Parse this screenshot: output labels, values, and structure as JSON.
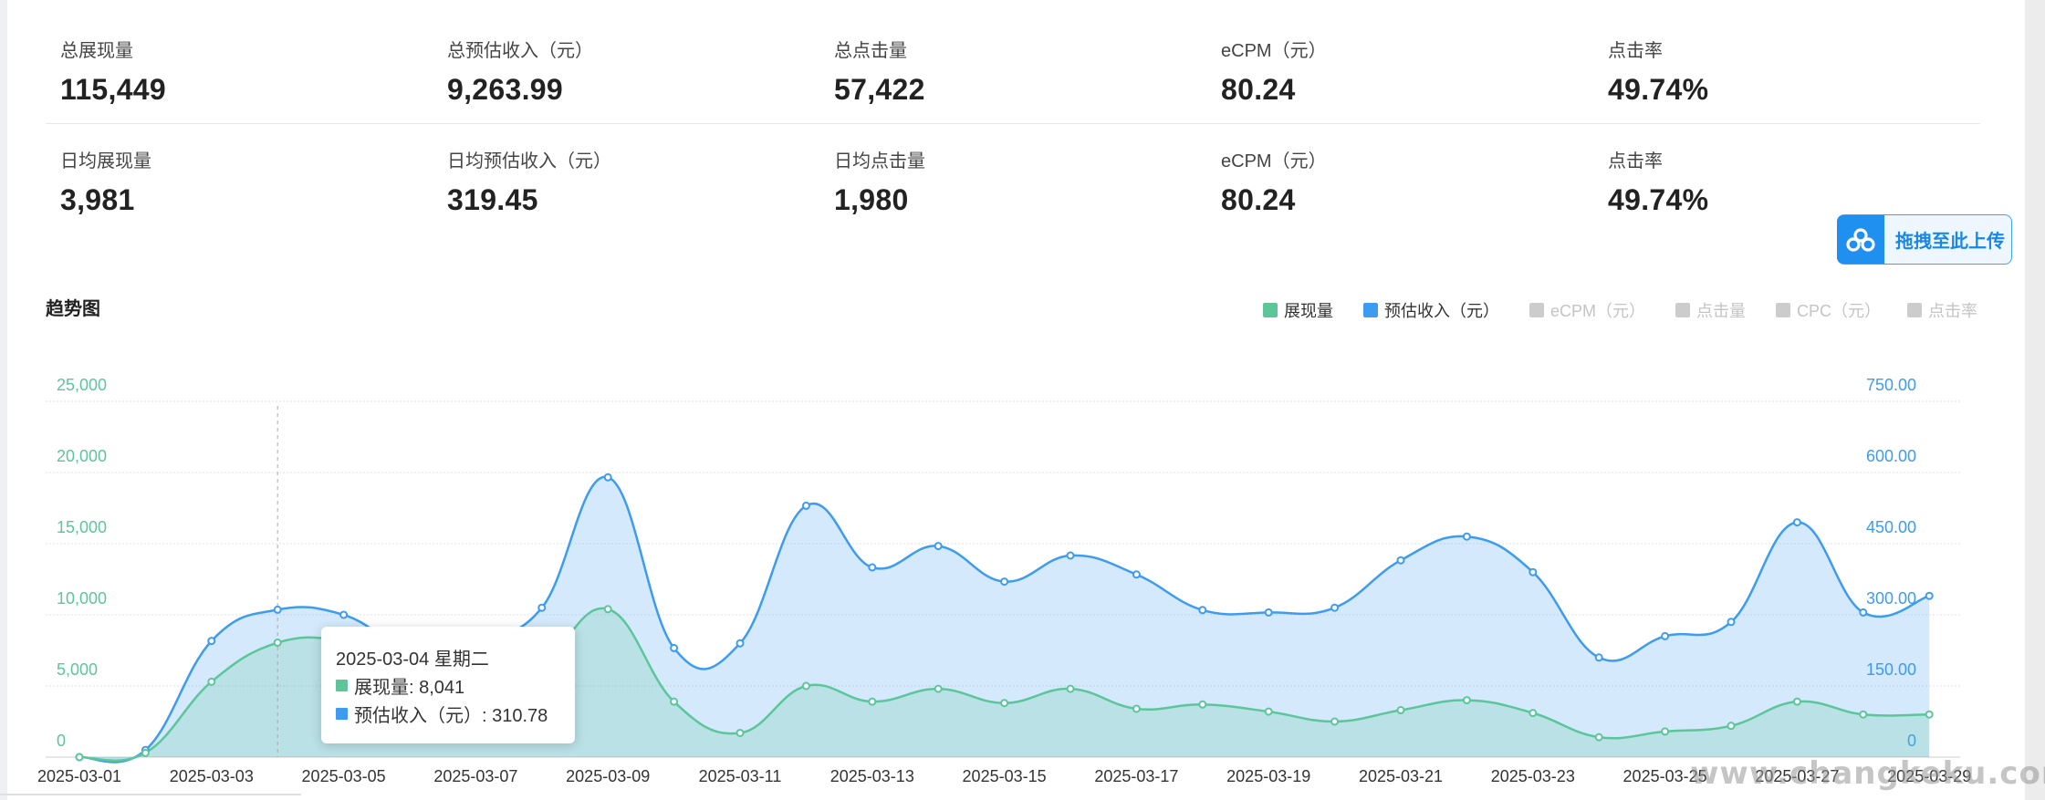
{
  "stats": {
    "row1": [
      {
        "label": "总展现量",
        "value": "115,449"
      },
      {
        "label": "总预估收入（元）",
        "value": "9,263.99"
      },
      {
        "label": "总点击量",
        "value": "57,422"
      },
      {
        "label": "eCPM（元）",
        "value": "80.24"
      },
      {
        "label": "点击率",
        "value": "49.74%"
      }
    ],
    "row2": [
      {
        "label": "日均展现量",
        "value": "3,981"
      },
      {
        "label": "日均预估收入（元）",
        "value": "319.45"
      },
      {
        "label": "日均点击量",
        "value": "1,980"
      },
      {
        "label": "eCPM（元）",
        "value": "80.24"
      },
      {
        "label": "点击率",
        "value": "49.74%"
      }
    ]
  },
  "upload_button": {
    "label": "拖拽至此上传",
    "icon": "cloud-share-icon"
  },
  "chart_data": {
    "type": "area",
    "title": "趋势图",
    "legend_position": "top-right",
    "legend": [
      {
        "name": "展现量",
        "color": "#5cc69a",
        "active": true
      },
      {
        "name": "预估收入（元）",
        "color": "#3d9bf0",
        "active": true
      },
      {
        "name": "eCPM（元）",
        "color": "#cccccc",
        "active": false
      },
      {
        "name": "点击量",
        "color": "#cccccc",
        "active": false
      },
      {
        "name": "CPC（元）",
        "color": "#cccccc",
        "active": false
      },
      {
        "name": "点击率",
        "color": "#cccccc",
        "active": false
      }
    ],
    "x": [
      "2025-03-01",
      "2025-03-02",
      "2025-03-03",
      "2025-03-04",
      "2025-03-05",
      "2025-03-06",
      "2025-03-07",
      "2025-03-08",
      "2025-03-09",
      "2025-03-10",
      "2025-03-11",
      "2025-03-12",
      "2025-03-13",
      "2025-03-14",
      "2025-03-15",
      "2025-03-16",
      "2025-03-17",
      "2025-03-18",
      "2025-03-19",
      "2025-03-20",
      "2025-03-21",
      "2025-03-22",
      "2025-03-23",
      "2025-03-24",
      "2025-03-25",
      "2025-03-26",
      "2025-03-27",
      "2025-03-28",
      "2025-03-29"
    ],
    "x_tick_labels": [
      "2025-03-01",
      "2025-03-03",
      "2025-03-05",
      "2025-03-07",
      "2025-03-09",
      "2025-03-11",
      "2025-03-13",
      "2025-03-15",
      "2025-03-17",
      "2025-03-19",
      "2025-03-21",
      "2025-03-23",
      "2025-03-25",
      "2025-03-27",
      "2025-03-29"
    ],
    "y_left": {
      "ticks": [
        "0",
        "5,000",
        "10,000",
        "15,000",
        "20,000",
        "25,000"
      ],
      "range": [
        0,
        25000
      ],
      "color": "#5cc69a"
    },
    "y_right": {
      "ticks": [
        "0",
        "150.00",
        "300.00",
        "450.00",
        "600.00",
        "750.00"
      ],
      "range": [
        0,
        750
      ],
      "color": "#3d9bf0"
    },
    "grid": true,
    "series": [
      {
        "name": "展现量",
        "axis": "left",
        "color": "#5cc69a",
        "values": [
          0,
          300,
          5300,
          8041,
          8200,
          7000,
          4500,
          6500,
          10400,
          3900,
          1700,
          5000,
          3900,
          4800,
          3800,
          4800,
          3400,
          3700,
          3200,
          2500,
          3300,
          4000,
          3100,
          1400,
          1800,
          2200,
          3900,
          3000,
          3000
        ]
      },
      {
        "name": "预估收入（元）",
        "axis": "right",
        "color": "#3d9bf0",
        "values": [
          0,
          15,
          245,
          310.78,
          300,
          230,
          250,
          315,
          590,
          230,
          240,
          530,
          400,
          445,
          370,
          425,
          385,
          310,
          305,
          315,
          415,
          465,
          390,
          210,
          255,
          285,
          495,
          305,
          340
        ]
      }
    ],
    "hover": {
      "index": 3
    }
  },
  "tooltip": {
    "date": "2025-03-04 星期二",
    "line1": "展现量: 8,041",
    "line2": "预估收入（元）: 310.78"
  },
  "watermark": "www.changkeku.com"
}
